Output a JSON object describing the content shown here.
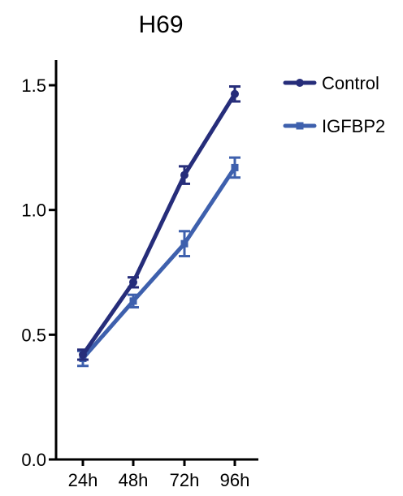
{
  "chart_data": {
    "type": "line",
    "title": "H69",
    "xlabel": "",
    "ylabel": "",
    "categories": [
      "24h",
      "48h",
      "72h",
      "96h"
    ],
    "ylim": [
      0.0,
      1.6
    ],
    "y_ticks": [
      "0.0",
      "0.5",
      "1.0",
      "1.5"
    ],
    "y_tick_values": [
      0.0,
      0.5,
      1.0,
      1.5
    ],
    "legend_position": "top-right",
    "grid": false,
    "series": [
      {
        "name": "Control",
        "color": "#262D7A",
        "marker": "circle",
        "values": [
          0.42,
          0.71,
          1.14,
          1.465
        ],
        "errors": [
          0.02,
          0.02,
          0.035,
          0.03
        ]
      },
      {
        "name": "IGFBP2",
        "color": "#3E60AD",
        "marker": "square",
        "values": [
          0.405,
          0.635,
          0.865,
          1.17
        ],
        "errors": [
          0.03,
          0.025,
          0.05,
          0.04
        ]
      }
    ]
  }
}
